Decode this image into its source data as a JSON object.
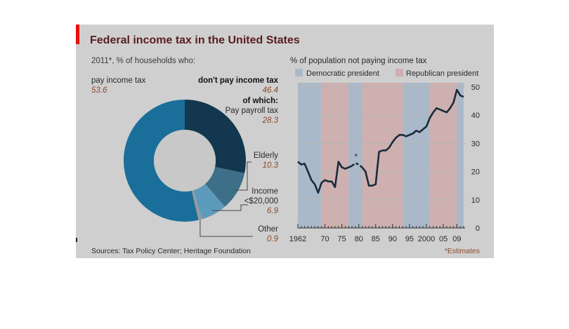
{
  "title": "Federal income tax in the United States",
  "source": "Sources: Tax Policy Center; Heritage Foundation",
  "footnote": "*Estimates",
  "colors": {
    "panel_bg": "#cfcfcf",
    "title_color": "#5a1d1d",
    "red_tag": "#e3120b",
    "dem_band": "#aab9c9",
    "rep_band": "#ceb0b0",
    "line": "#1a2b3a",
    "donut_pay": "#1a6f9a",
    "donut_nopay": "#13374f",
    "donut_elderly": "#3d6f88",
    "donut_income": "#5d9bbd",
    "donut_other": "#9a9a9a",
    "value_color": "#8a4a2a"
  },
  "chart_data": [
    {
      "type": "pie",
      "subtitle": "2011*, % of households who:",
      "slices": [
        {
          "label": "pay income tax",
          "value": 53.6
        },
        {
          "label": "don't pay income tax",
          "value": 46.4
        }
      ],
      "sub_heading": "of which:",
      "sub_slices": [
        {
          "label": "Pay payroll tax",
          "value": 28.3
        },
        {
          "label": "Elderly",
          "value": 10.3
        },
        {
          "label": "Income <$20,000",
          "value": 6.9
        },
        {
          "label": "Other",
          "value": 0.9
        }
      ]
    },
    {
      "type": "line",
      "title": "% of population not paying income tax",
      "legend": [
        {
          "label": "Democratic president",
          "color": "#aab9c9"
        },
        {
          "label": "Republican president",
          "color": "#ceb0b0"
        }
      ],
      "xlim": [
        1962,
        2011
      ],
      "ylim": [
        0,
        50
      ],
      "x_ticks": [
        {
          "value": 1962,
          "label": "1962"
        },
        {
          "value": 1970,
          "label": "70"
        },
        {
          "value": 1975,
          "label": "75"
        },
        {
          "value": 1980,
          "label": "80"
        },
        {
          "value": 1985,
          "label": "85"
        },
        {
          "value": 1990,
          "label": "90"
        },
        {
          "value": 1995,
          "label": "95"
        },
        {
          "value": 2000,
          "label": "2000"
        },
        {
          "value": 2005,
          "label": "05"
        },
        {
          "value": 2009,
          "label": "09"
        }
      ],
      "y_ticks": [
        0,
        10,
        20,
        30,
        40,
        50
      ],
      "presidency_bands": [
        {
          "from": 1962,
          "to": 1969,
          "party": "Democratic"
        },
        {
          "from": 1969,
          "to": 1977,
          "party": "Republican"
        },
        {
          "from": 1977,
          "to": 1981,
          "party": "Democratic"
        },
        {
          "from": 1981,
          "to": 1993,
          "party": "Republican"
        },
        {
          "from": 1993,
          "to": 2001,
          "party": "Democratic"
        },
        {
          "from": 2001,
          "to": 2009,
          "party": "Republican"
        },
        {
          "from": 2009,
          "to": 2011,
          "party": "Democratic"
        }
      ],
      "series": [
        {
          "x": [
            1962,
            1963,
            1964,
            1965,
            1966,
            1967,
            1968,
            1969,
            1970,
            1971,
            1972,
            1973,
            1974,
            1975,
            1976,
            1977,
            1978
          ],
          "y": [
            23.5,
            22.5,
            22.8,
            20,
            17,
            15.5,
            12.5,
            16,
            17,
            16.5,
            16.5,
            14.5,
            23.5,
            21.5,
            21,
            21.5,
            22
          ]
        },
        {
          "x": [
            1978,
            1979,
            1980,
            1981
          ],
          "y": [
            22,
            23,
            22.5,
            21.5
          ],
          "estimate": true,
          "marker_label": "*"
        },
        {
          "x": [
            1981,
            1982,
            1983,
            1984,
            1985,
            1986,
            1987,
            1988,
            1989,
            1990,
            1991,
            1992,
            1993,
            1994,
            1995,
            1996,
            1997,
            1998,
            1999,
            2000,
            2001,
            2002,
            2003,
            2004,
            2005,
            2006,
            2007,
            2008,
            2009,
            2010,
            2011
          ],
          "y": [
            21.5,
            20,
            15,
            15,
            15.5,
            27,
            27.5,
            27.5,
            28.5,
            30.5,
            32,
            33,
            33,
            32.5,
            33,
            33.5,
            34.5,
            34,
            35,
            36,
            39,
            41,
            42.5,
            42,
            41.5,
            41,
            42.5,
            44.5,
            49,
            47,
            46.5
          ]
        }
      ]
    }
  ]
}
